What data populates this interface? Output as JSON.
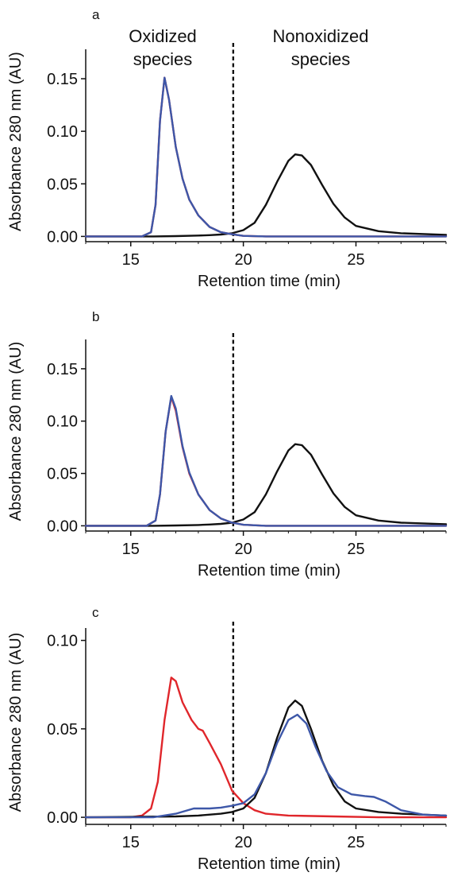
{
  "figure": {
    "annotations": {
      "left_line1": "Oxidized",
      "left_line2": "species",
      "right_line1": "Nonoxidized",
      "right_line2": "species"
    }
  },
  "colors": {
    "black": "#111111",
    "blue": "#3d57a8",
    "red": "#e0262b"
  },
  "chart_data": [
    {
      "type": "line",
      "panel_label": "a",
      "xlabel": "Retention time (min)",
      "ylabel": "Absorbance 280 nm (AU)",
      "xlim": [
        13,
        29
      ],
      "ylim": [
        -0.005,
        0.178
      ],
      "xticks": [
        15,
        20,
        25
      ],
      "yticks": [
        0.0,
        0.05,
        0.1,
        0.15
      ],
      "ytick_labels": [
        "0.00",
        "0.05",
        "0.10",
        "0.15"
      ],
      "vline_x": 19.55,
      "series": [
        {
          "color": "black",
          "points": [
            [
              13,
              0.0
            ],
            [
              16,
              0.0
            ],
            [
              17,
              0.0003
            ],
            [
              18,
              0.0008
            ],
            [
              18.5,
              0.0012
            ],
            [
              19,
              0.0018
            ],
            [
              19.5,
              0.003
            ],
            [
              20,
              0.006
            ],
            [
              20.5,
              0.013
            ],
            [
              21,
              0.03
            ],
            [
              21.5,
              0.052
            ],
            [
              22,
              0.072
            ],
            [
              22.3,
              0.078
            ],
            [
              22.6,
              0.077
            ],
            [
              23,
              0.068
            ],
            [
              23.5,
              0.049
            ],
            [
              24,
              0.031
            ],
            [
              24.5,
              0.018
            ],
            [
              25,
              0.01
            ],
            [
              26,
              0.005
            ],
            [
              27,
              0.003
            ],
            [
              29,
              0.0015
            ]
          ]
        },
        {
          "color": "red",
          "points": [
            [
              13,
              0.0
            ],
            [
              15.5,
              0.0
            ],
            [
              15.9,
              0.004
            ],
            [
              16.1,
              0.03
            ],
            [
              16.3,
              0.11
            ],
            [
              16.5,
              0.151
            ],
            [
              16.7,
              0.13
            ],
            [
              17.0,
              0.085
            ],
            [
              17.3,
              0.055
            ],
            [
              17.6,
              0.035
            ],
            [
              18,
              0.02
            ],
            [
              18.5,
              0.009
            ],
            [
              19,
              0.004
            ],
            [
              19.5,
              0.002
            ],
            [
              20,
              0.0005
            ],
            [
              21,
              0.0
            ],
            [
              29,
              0.0
            ]
          ]
        },
        {
          "color": "blue",
          "points": [
            [
              13,
              0.0
            ],
            [
              15.5,
              0.0
            ],
            [
              15.9,
              0.004
            ],
            [
              16.1,
              0.03
            ],
            [
              16.3,
              0.11
            ],
            [
              16.5,
              0.151
            ],
            [
              16.7,
              0.13
            ],
            [
              17.0,
              0.085
            ],
            [
              17.3,
              0.055
            ],
            [
              17.6,
              0.035
            ],
            [
              18,
              0.02
            ],
            [
              18.5,
              0.009
            ],
            [
              19,
              0.004
            ],
            [
              19.5,
              0.002
            ],
            [
              20,
              0.0005
            ],
            [
              21,
              0.0
            ],
            [
              29,
              0.0
            ]
          ]
        }
      ]
    },
    {
      "type": "line",
      "panel_label": "b",
      "xlabel": "Retention time (min)",
      "ylabel": "Absorbance 280 nm (AU)",
      "xlim": [
        13,
        29
      ],
      "ylim": [
        -0.005,
        0.178
      ],
      "xticks": [
        15,
        20,
        25
      ],
      "yticks": [
        0.0,
        0.05,
        0.1,
        0.15
      ],
      "ytick_labels": [
        "0.00",
        "0.05",
        "0.10",
        "0.15"
      ],
      "vline_x": 19.55,
      "series": [
        {
          "color": "black",
          "points": [
            [
              13,
              0.0
            ],
            [
              16,
              0.0
            ],
            [
              17,
              0.0003
            ],
            [
              18,
              0.0008
            ],
            [
              18.5,
              0.0012
            ],
            [
              19,
              0.0018
            ],
            [
              19.5,
              0.003
            ],
            [
              20,
              0.006
            ],
            [
              20.5,
              0.013
            ],
            [
              21,
              0.03
            ],
            [
              21.5,
              0.052
            ],
            [
              22,
              0.072
            ],
            [
              22.3,
              0.078
            ],
            [
              22.6,
              0.077
            ],
            [
              23,
              0.068
            ],
            [
              23.5,
              0.049
            ],
            [
              24,
              0.031
            ],
            [
              24.5,
              0.018
            ],
            [
              25,
              0.01
            ],
            [
              26,
              0.005
            ],
            [
              27,
              0.003
            ],
            [
              29,
              0.0015
            ]
          ]
        },
        {
          "color": "red",
          "points": [
            [
              13,
              0.0
            ],
            [
              15.7,
              0.0
            ],
            [
              16.1,
              0.005
            ],
            [
              16.3,
              0.03
            ],
            [
              16.55,
              0.09
            ],
            [
              16.8,
              0.123
            ],
            [
              17.0,
              0.11
            ],
            [
              17.3,
              0.075
            ],
            [
              17.6,
              0.05
            ],
            [
              18,
              0.03
            ],
            [
              18.5,
              0.015
            ],
            [
              19,
              0.007
            ],
            [
              19.5,
              0.003
            ],
            [
              20,
              0.001
            ],
            [
              21,
              0.0
            ],
            [
              29,
              0.0
            ]
          ]
        },
        {
          "color": "blue",
          "points": [
            [
              13,
              0.0
            ],
            [
              15.7,
              0.0
            ],
            [
              16.1,
              0.005
            ],
            [
              16.3,
              0.03
            ],
            [
              16.55,
              0.09
            ],
            [
              16.8,
              0.124
            ],
            [
              17.0,
              0.112
            ],
            [
              17.3,
              0.076
            ],
            [
              17.6,
              0.051
            ],
            [
              18,
              0.03
            ],
            [
              18.5,
              0.015
            ],
            [
              19,
              0.007
            ],
            [
              19.5,
              0.003
            ],
            [
              20,
              0.001
            ],
            [
              21,
              0.0
            ],
            [
              29,
              0.0
            ]
          ]
        }
      ]
    },
    {
      "type": "line",
      "panel_label": "c",
      "xlabel": "Retention time (min)",
      "ylabel": "Absorbance 280 nm (AU)",
      "xlim": [
        13,
        29
      ],
      "ylim": [
        -0.004,
        0.107
      ],
      "xticks": [
        15,
        20,
        25
      ],
      "yticks": [
        0.0,
        0.05,
        0.1
      ],
      "ytick_labels": [
        "0.00",
        "0.05",
        "0.10"
      ],
      "vline_x": 19.55,
      "series": [
        {
          "color": "red",
          "points": [
            [
              13,
              0.0
            ],
            [
              15,
              0.0
            ],
            [
              15.5,
              0.001
            ],
            [
              15.9,
              0.005
            ],
            [
              16.2,
              0.02
            ],
            [
              16.5,
              0.055
            ],
            [
              16.8,
              0.079
            ],
            [
              17.0,
              0.077
            ],
            [
              17.3,
              0.065
            ],
            [
              17.7,
              0.055
            ],
            [
              18,
              0.05
            ],
            [
              18.2,
              0.049
            ],
            [
              18.5,
              0.042
            ],
            [
              19,
              0.03
            ],
            [
              19.5,
              0.015
            ],
            [
              20,
              0.008
            ],
            [
              20.5,
              0.004
            ],
            [
              21,
              0.002
            ],
            [
              22,
              0.001
            ],
            [
              24,
              0.0005
            ],
            [
              26,
              0.0
            ],
            [
              29,
              0.0
            ]
          ]
        },
        {
          "color": "black",
          "points": [
            [
              13,
              0.0
            ],
            [
              17,
              0.0005
            ],
            [
              18,
              0.001
            ],
            [
              19,
              0.002
            ],
            [
              19.5,
              0.003
            ],
            [
              20,
              0.005
            ],
            [
              20.5,
              0.011
            ],
            [
              21,
              0.025
            ],
            [
              21.5,
              0.045
            ],
            [
              22,
              0.062
            ],
            [
              22.3,
              0.066
            ],
            [
              22.6,
              0.063
            ],
            [
              23,
              0.05
            ],
            [
              23.5,
              0.032
            ],
            [
              24,
              0.018
            ],
            [
              24.5,
              0.009
            ],
            [
              25,
              0.005
            ],
            [
              26,
              0.003
            ],
            [
              27,
              0.002
            ],
            [
              29,
              0.001
            ]
          ]
        },
        {
          "color": "blue",
          "points": [
            [
              13,
              0.0
            ],
            [
              16,
              0.0
            ],
            [
              17,
              0.002
            ],
            [
              17.8,
              0.005
            ],
            [
              18.5,
              0.005
            ],
            [
              19,
              0.0055
            ],
            [
              19.5,
              0.0065
            ],
            [
              20,
              0.008
            ],
            [
              20.5,
              0.013
            ],
            [
              21,
              0.025
            ],
            [
              21.5,
              0.042
            ],
            [
              22,
              0.055
            ],
            [
              22.4,
              0.058
            ],
            [
              22.8,
              0.053
            ],
            [
              23.2,
              0.04
            ],
            [
              23.7,
              0.026
            ],
            [
              24.2,
              0.017
            ],
            [
              24.8,
              0.013
            ],
            [
              25.4,
              0.012
            ],
            [
              25.8,
              0.0115
            ],
            [
              26.3,
              0.009
            ],
            [
              27,
              0.004
            ],
            [
              28,
              0.0015
            ],
            [
              29,
              0.001
            ]
          ]
        }
      ]
    }
  ]
}
